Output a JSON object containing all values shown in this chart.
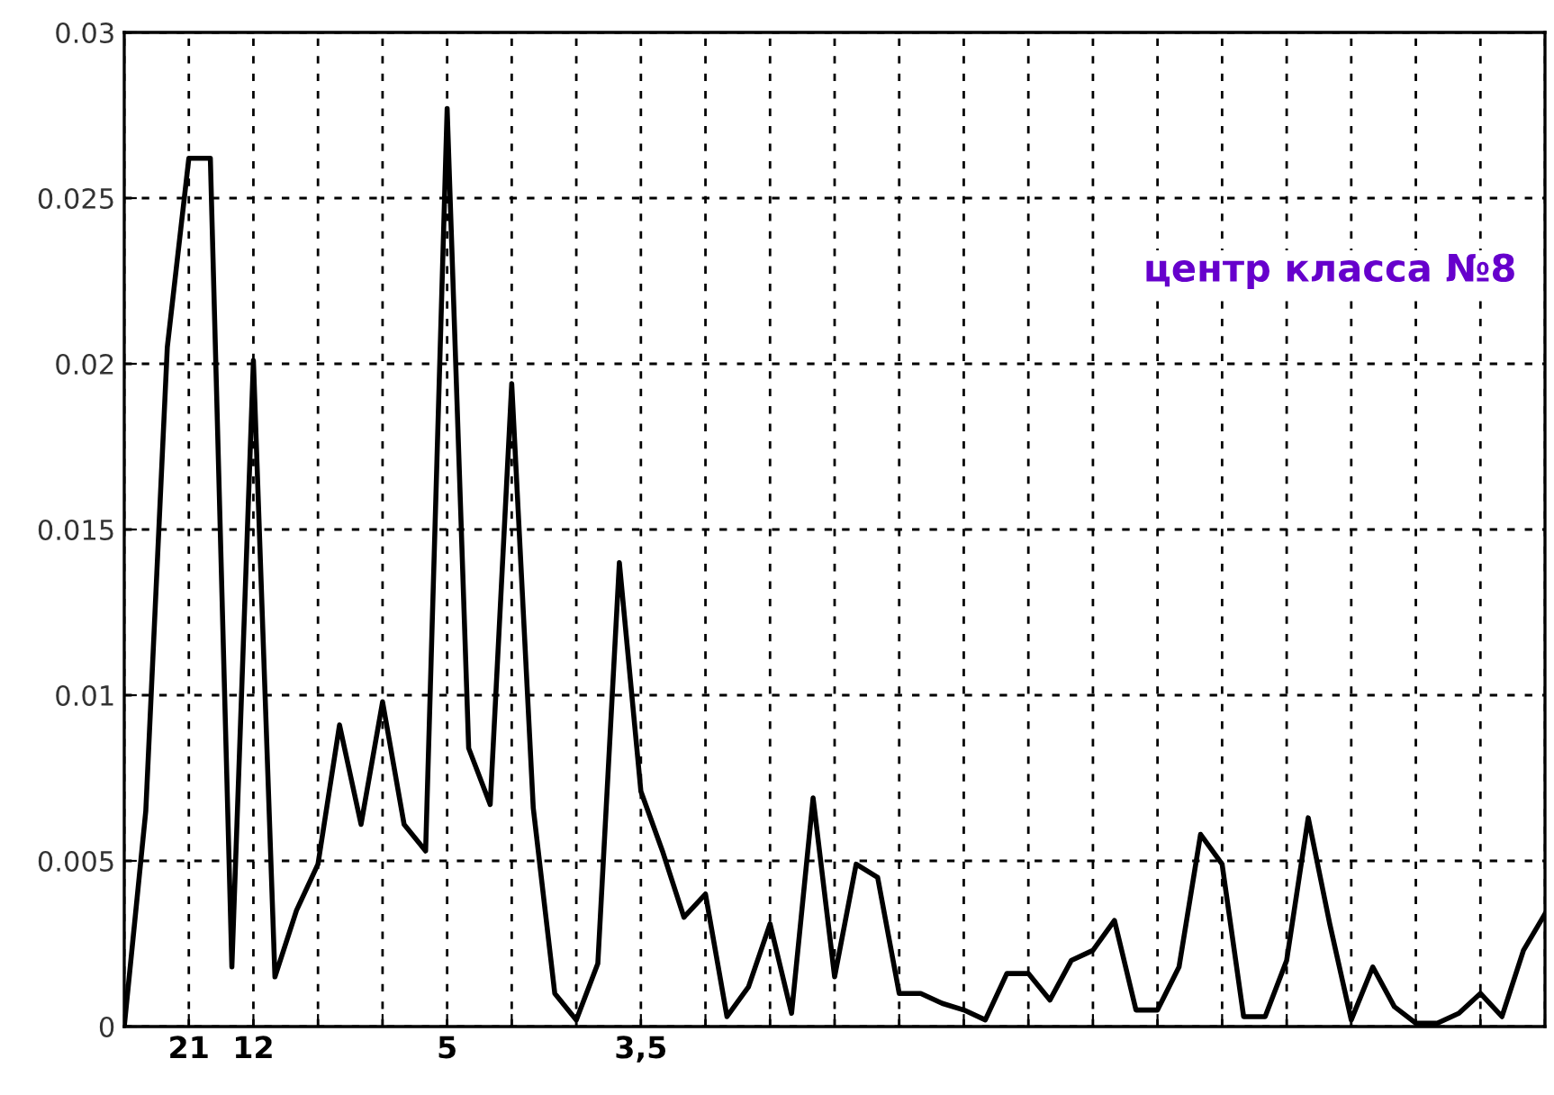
{
  "chart_data": {
    "type": "line",
    "categories": [
      null,
      null,
      null,
      "21",
      null,
      null,
      "12",
      null,
      null,
      null,
      null,
      null,
      null,
      null,
      null,
      "5",
      null,
      null,
      null,
      null,
      null,
      null,
      null,
      null,
      "3,5",
      null,
      null,
      null,
      null,
      null,
      null,
      null,
      null,
      null,
      null,
      null,
      null,
      null,
      null,
      null,
      null,
      null,
      null,
      null,
      null,
      null,
      null,
      null,
      null,
      null,
      null,
      null,
      null,
      null,
      null,
      null,
      null,
      null,
      null,
      null,
      null,
      null,
      null,
      null,
      null,
      null,
      null
    ],
    "series": [
      {
        "color": "#000000",
        "values": [
          0,
          0.0065,
          0.0205,
          0.0262,
          0.0262,
          0.0018,
          0.0201,
          0.0015,
          0.0035,
          0.0049,
          0.0091,
          0.0061,
          0.0098,
          0.0061,
          0.0053,
          0.0277,
          0.0084,
          0.0067,
          0.0194,
          0.0066,
          0.001,
          0.0002,
          0.0019,
          0.014,
          0.0071,
          0.0053,
          0.0033,
          0.004,
          0.0003,
          0.0012,
          0.0031,
          0.0004,
          0.0069,
          0.0015,
          0.0049,
          0.0045,
          0.001,
          0.001,
          0.0007,
          0.0005,
          0.0002,
          0.0016,
          0.0016,
          0.0008,
          0.002,
          0.0023,
          0.0032,
          0.0005,
          0.0005,
          0.0018,
          0.0058,
          0.0049,
          0.0003,
          0.0003,
          0.002,
          0.0063,
          0.0031,
          0.0002,
          0.0018,
          0.0006,
          0.0001,
          0.0001,
          0.0004,
          0.001,
          0.0003,
          0.0023,
          0.0034
        ]
      }
    ],
    "ylim": [
      0,
      0.03
    ],
    "yticks": [
      0,
      0.005,
      0.01,
      0.015,
      0.02,
      0.025,
      0.03
    ],
    "grid": true,
    "line_style": "solid",
    "marker": "none",
    "annotations": [
      "центр класса №8"
    ]
  }
}
